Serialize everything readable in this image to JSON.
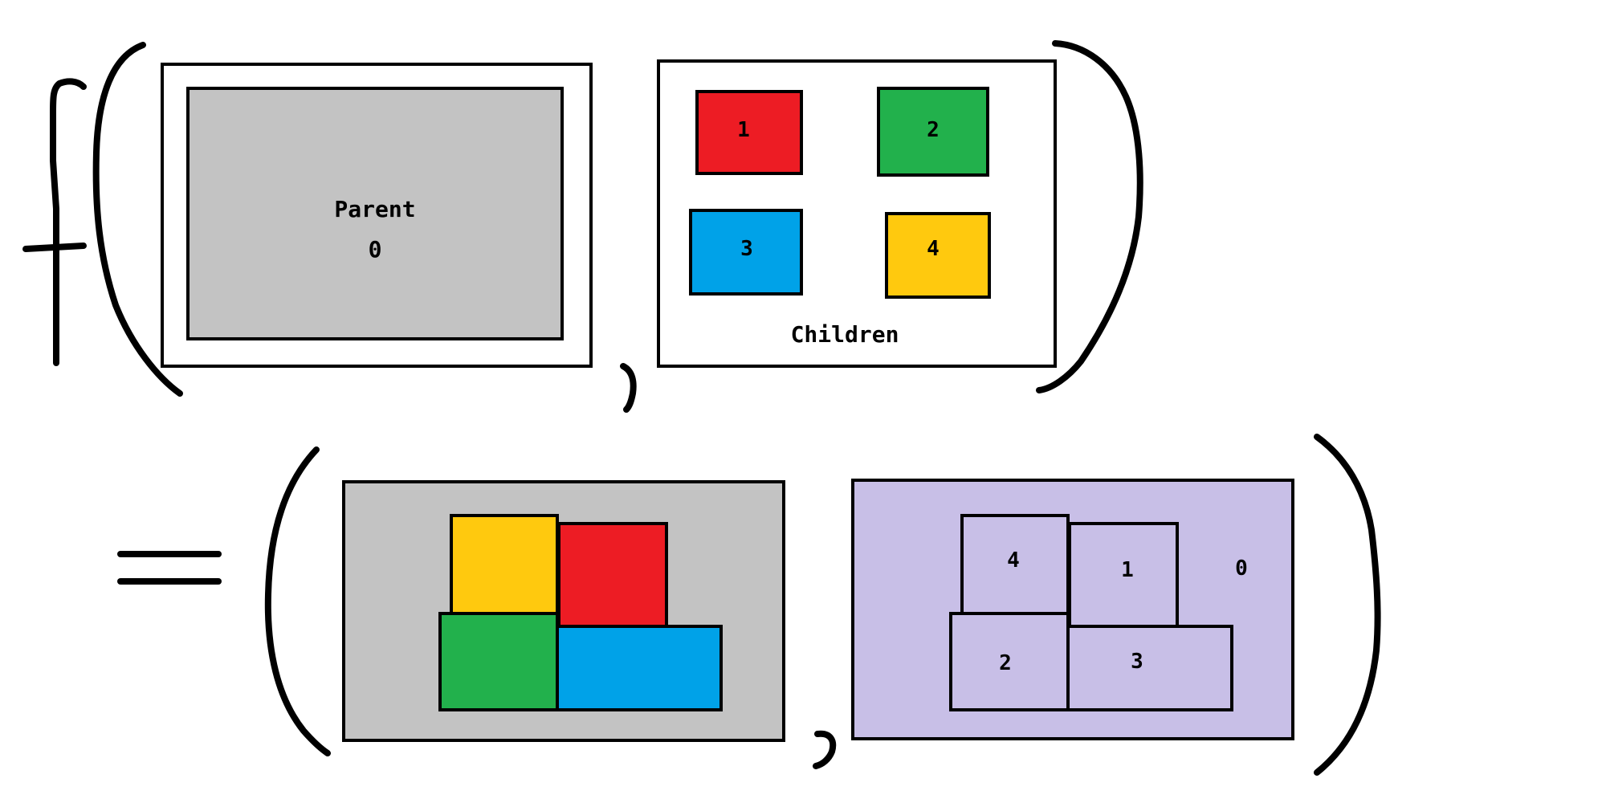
{
  "colors": {
    "parent": "#c3c3c3",
    "block1": "#ed1c24",
    "block2": "#22b14c",
    "block3": "#00a2e8",
    "block4": "#ffc90e",
    "map_background": "#c8bfe7",
    "stroke": "#000000"
  },
  "function_symbol": "f",
  "equals_symbol": "=",
  "input": {
    "parent": {
      "label": "Parent",
      "id": "0"
    },
    "children": {
      "label": "Children",
      "blocks": [
        {
          "id": "1",
          "color": "#ed1c24"
        },
        {
          "id": "2",
          "color": "#22b14c"
        },
        {
          "id": "3",
          "color": "#00a2e8"
        },
        {
          "id": "4",
          "color": "#ffc90e"
        }
      ]
    }
  },
  "output": {
    "packed_blocks": [
      {
        "id": "4",
        "color": "#ffc90e"
      },
      {
        "id": "1",
        "color": "#ed1c24"
      },
      {
        "id": "2",
        "color": "#22b14c"
      },
      {
        "id": "3",
        "color": "#00a2e8"
      }
    ],
    "map_background_label": "0",
    "map_cells": [
      {
        "id": "4"
      },
      {
        "id": "1"
      },
      {
        "id": "2"
      },
      {
        "id": "3"
      }
    ]
  }
}
